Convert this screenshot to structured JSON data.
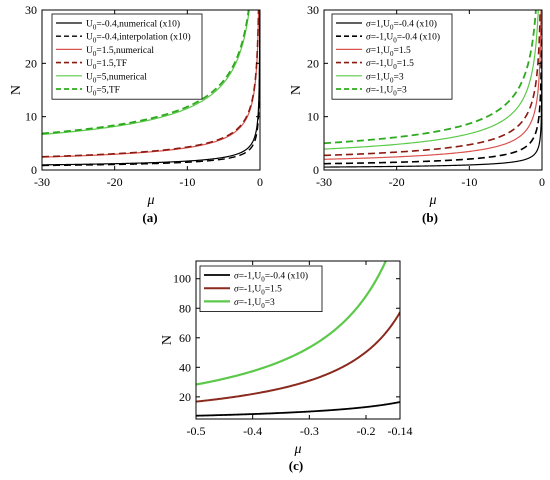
{
  "chart_data": [
    {
      "panel_label": "(a)",
      "type": "line",
      "xlabel": "μ",
      "ylabel": "N",
      "xlim": [
        -30,
        0
      ],
      "ylim": [
        0,
        30
      ],
      "xticks": [
        -30,
        -20,
        -10,
        0
      ],
      "yticks": [
        0,
        10,
        20,
        30
      ],
      "xtick_labels": [
        "-30",
        "-20",
        "-10",
        "0"
      ],
      "ytick_labels": [
        "0",
        "10",
        "20",
        "30"
      ],
      "legend_placement": "top-left",
      "series": [
        {
          "name": "U0=-0.4,numerical (x10)",
          "legend_base": "U",
          "legend_sub": "0",
          "legend_rest": "=-0.4,numerical (x10)",
          "color": "#000000",
          "dash": "solid",
          "amp": 5.3,
          "power": 0.5,
          "width": 1.2
        },
        {
          "name": "U0=-0.4,interpolation (x10)",
          "legend_base": "U",
          "legend_sub": "0",
          "legend_rest": "=-0.4,interpolation (x10)",
          "color": "#000000",
          "dash": "dashed",
          "amp": 4.6,
          "power": 0.5,
          "width": 1.4
        },
        {
          "name": "U0=1.5,numerical",
          "legend_base": "U",
          "legend_sub": "0",
          "legend_rest": "=1.5,numerical",
          "color": "#d9534f",
          "dash": "solid",
          "amp": 13.2,
          "power": 0.5,
          "width": 1.2
        },
        {
          "name": "U0=1.5,TF",
          "legend_base": "U",
          "legend_sub": "0",
          "legend_rest": "=1.5,TF",
          "color": "#8b1a10",
          "dash": "dashed",
          "amp": 13.6,
          "power": 0.5,
          "width": 1.6
        },
        {
          "name": "U0=5,numerical",
          "legend_base": "U",
          "legend_sub": "0",
          "legend_rest": "=5,numerical",
          "color": "#5cc94a",
          "dash": "solid",
          "amp": 36.5,
          "power": 0.5,
          "width": 1.2
        },
        {
          "name": "U0=5,TF",
          "legend_base": "U",
          "legend_sub": "0",
          "legend_rest": "=5,TF",
          "color": "#2eaa1e",
          "dash": "dashed",
          "amp": 37.5,
          "power": 0.5,
          "width": 1.8
        }
      ]
    },
    {
      "panel_label": "(b)",
      "type": "line",
      "xlabel": "μ",
      "ylabel": "N",
      "xlim": [
        -30,
        0
      ],
      "ylim": [
        0,
        30
      ],
      "xticks": [
        -30,
        -20,
        -10,
        0
      ],
      "yticks": [
        0,
        10,
        20,
        30
      ],
      "xtick_labels": [
        "-30",
        "-20",
        "-10",
        "0"
      ],
      "ytick_labels": [
        "0",
        "10",
        "20",
        "30"
      ],
      "legend_placement": "top-left",
      "series": [
        {
          "name": "σ=1,U0=-0.4 (x10)",
          "legend_base": "σ=1,U",
          "legend_sub": "0",
          "legend_rest": "=-0.4 (x10)",
          "color": "#000000",
          "dash": "solid",
          "amp": 3.0,
          "power": 0.5,
          "width": 1.2
        },
        {
          "name": "σ=-1,U0=-0.4 (x10)",
          "legend_base": "σ=-1,U",
          "legend_sub": "0",
          "legend_rest": "=-0.4 (x10)",
          "color": "#000000",
          "dash": "dashed",
          "amp": 6.5,
          "power": 0.5,
          "width": 1.6
        },
        {
          "name": "σ=1,U0=1.5",
          "legend_base": "σ=1,U",
          "legend_sub": "0",
          "legend_rest": "=1.5",
          "color": "#d9534f",
          "dash": "solid",
          "amp": 11.0,
          "power": 0.5,
          "width": 1.2
        },
        {
          "name": "σ=-1,U0=1.5",
          "legend_base": "σ=-1,U",
          "legend_sub": "0",
          "legend_rest": "=1.5",
          "color": "#8b1a10",
          "dash": "dashed",
          "amp": 15.0,
          "power": 0.5,
          "width": 1.6
        },
        {
          "name": "σ=1,U0=3",
          "legend_base": "σ=1,U",
          "legend_sub": "0",
          "legend_rest": "=3",
          "color": "#5cc94a",
          "dash": "solid",
          "amp": 21.5,
          "power": 0.5,
          "width": 1.2
        },
        {
          "name": "σ=-1,U0=3",
          "legend_base": "σ=-1,U",
          "legend_sub": "0",
          "legend_rest": "=3",
          "color": "#2eaa1e",
          "dash": "dashed",
          "amp": 27.5,
          "power": 0.5,
          "width": 1.8
        }
      ]
    },
    {
      "panel_label": "(c)",
      "type": "line",
      "xlabel": "μ",
      "ylabel": "N",
      "xlim": [
        -0.5,
        -0.14
      ],
      "ylim": [
        5,
        112
      ],
      "xticks": [
        -0.5,
        -0.4,
        -0.3,
        -0.2,
        -0.14
      ],
      "yticks": [
        20,
        40,
        60,
        80,
        100
      ],
      "xtick_labels": [
        "-0.5",
        "-0.4",
        "-0.3",
        "-0.2",
        "-0.14"
      ],
      "ytick_labels": [
        "20",
        "40",
        "60",
        "80",
        "100"
      ],
      "legend_placement": "top-left",
      "series": [
        {
          "name": "σ=-1,U0=-0.4 (x10)",
          "legend_base": "σ=-1,U",
          "legend_sub": "0",
          "legend_rest": "=-0.4 (x10)",
          "color": "#000000",
          "dash": "solid",
          "amp": 4.6,
          "power": 0.65,
          "width": 1.8
        },
        {
          "name": "σ=-1,U0=1.5",
          "legend_base": "σ=-1,U",
          "legend_sub": "0",
          "legend_rest": "=1.5",
          "color": "#8b2a1e",
          "dash": "solid",
          "amp": 7.3,
          "power": 1.2,
          "width": 2.0
        },
        {
          "name": "σ=-1,U0=3",
          "legend_base": "σ=-1,U",
          "legend_sub": "0",
          "legend_rest": "=3",
          "color": "#5cc94a",
          "dash": "solid",
          "amp": 12.0,
          "power": 1.24,
          "width": 2.2
        }
      ]
    }
  ]
}
